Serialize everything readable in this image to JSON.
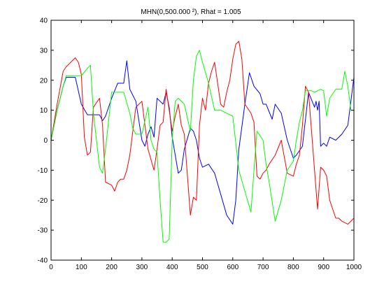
{
  "chart_data": {
    "type": "line",
    "title": "MHN(0,500.000 ²), Rhat = 1.005",
    "xlabel": "",
    "ylabel": "",
    "xlim": [
      0,
      1000
    ],
    "ylim": [
      -40,
      40
    ],
    "xticks": [
      0,
      100,
      200,
      300,
      400,
      500,
      600,
      700,
      800,
      900,
      1000
    ],
    "yticks": [
      -40,
      -30,
      -20,
      -10,
      0,
      10,
      20,
      30,
      40
    ],
    "grid": false,
    "legend": "none",
    "series": [
      {
        "color": "#0000ff",
        "x": [
          0,
          20,
          40,
          50,
          60,
          80,
          100,
          120,
          140,
          160,
          170,
          180,
          200,
          220,
          240,
          250,
          260,
          280,
          300,
          310,
          320,
          330,
          340,
          350,
          360,
          370,
          380,
          390,
          400,
          420,
          430,
          440,
          460,
          470,
          480,
          490,
          500,
          520,
          540,
          560,
          580,
          600,
          610,
          620,
          640,
          655,
          670,
          690,
          700,
          710,
          730,
          740,
          760,
          780,
          800,
          810,
          830,
          850,
          870,
          875,
          880,
          885,
          890,
          900,
          910,
          920,
          940,
          960,
          980,
          1000
        ],
        "y": [
          0,
          10,
          18,
          21,
          21,
          21,
          12,
          8.5,
          8.5,
          8.5,
          6.5,
          8,
          14,
          19,
          19,
          26.5,
          17,
          13,
          0,
          -2,
          2,
          4.5,
          1,
          14,
          13,
          12,
          16,
          11,
          1,
          -11,
          -10,
          -3,
          4,
          3,
          0,
          -6,
          -9,
          -8,
          -11,
          -18,
          -25,
          -28,
          -20,
          -3,
          12,
          22.5,
          18,
          15.5,
          12,
          12,
          7,
          12,
          9,
          0,
          -6,
          -5,
          -2,
          16,
          11,
          13,
          10,
          13,
          -2,
          -1,
          -2,
          1,
          0,
          2,
          5,
          21
        ]
      },
      {
        "color": "#ff0000",
        "x": [
          0,
          20,
          40,
          50,
          60,
          80,
          90,
          100,
          110,
          120,
          130,
          140,
          160,
          170,
          180,
          200,
          210,
          220,
          230,
          240,
          250,
          260,
          270,
          280,
          300,
          320,
          340,
          350,
          360,
          370,
          380,
          390,
          400,
          410,
          420,
          430,
          440,
          460,
          470,
          480,
          490,
          500,
          510,
          520,
          530,
          540,
          560,
          570,
          580,
          590,
          600,
          610,
          620,
          630,
          640,
          660,
          670,
          680,
          690,
          700,
          710,
          720,
          740,
          760,
          780,
          800,
          810,
          820,
          830,
          840,
          850,
          860,
          870,
          880,
          890,
          900,
          910,
          920,
          940,
          950,
          960,
          980,
          1000
        ],
        "y": [
          0,
          12,
          23,
          24.5,
          25.5,
          27.5,
          26,
          22,
          1,
          -5,
          -4,
          11,
          14,
          5,
          -14,
          -15,
          -17,
          -14,
          -13,
          -13,
          -10,
          -5,
          3,
          11,
          13,
          -3,
          -10,
          -3,
          5,
          6,
          17,
          10,
          3,
          8,
          12,
          5,
          2,
          -25,
          -19,
          -20,
          5,
          14,
          10,
          19,
          23,
          26,
          12,
          11,
          16,
          20,
          27,
          32,
          33,
          27,
          12,
          9,
          6,
          -12,
          -13,
          -11,
          -10,
          -8,
          -5,
          0,
          -11,
          -12,
          -8,
          -5,
          5,
          18,
          16,
          3,
          -10,
          -23,
          -9,
          -10,
          -12,
          -20,
          -26,
          -26,
          -27,
          -28,
          -26
        ]
      },
      {
        "color": "#00ff00",
        "x": [
          0,
          20,
          40,
          50,
          60,
          80,
          100,
          120,
          130,
          140,
          160,
          170,
          180,
          200,
          220,
          240,
          260,
          270,
          280,
          300,
          320,
          330,
          340,
          350,
          360,
          370,
          380,
          390,
          400,
          410,
          420,
          440,
          460,
          470,
          480,
          490,
          500,
          520,
          540,
          560,
          580,
          600,
          620,
          640,
          660,
          670,
          680,
          700,
          710,
          720,
          740,
          760,
          780,
          800,
          810,
          820,
          830,
          840,
          850,
          860,
          870,
          880,
          890,
          900,
          910,
          920,
          940,
          960,
          970,
          980,
          990,
          1000
        ],
        "y": [
          0,
          10,
          18,
          21.5,
          21.5,
          21.5,
          21.5,
          24,
          25,
          9,
          -9,
          -11,
          -3,
          16,
          16,
          16,
          9,
          4,
          2,
          2,
          11,
          0,
          -3,
          -4,
          -20,
          -34,
          -34,
          -33,
          0,
          13,
          14,
          12,
          3,
          20,
          28,
          30,
          26,
          19,
          10,
          10,
          9,
          8,
          -10,
          -17,
          -24,
          -10,
          3,
          0,
          -8,
          -14,
          -27,
          -20,
          -10,
          -7,
          0,
          6,
          10,
          16.5,
          16.5,
          16.5,
          16,
          16.5,
          17,
          16.5,
          8,
          14,
          17,
          17,
          23,
          18,
          10,
          10
        ]
      }
    ]
  }
}
